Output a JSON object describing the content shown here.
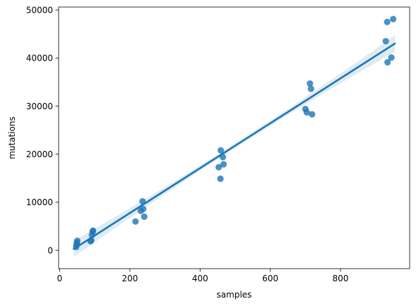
{
  "chart_data": {
    "type": "scatter",
    "title": "",
    "xlabel": "samples",
    "ylabel": "mutations",
    "xlim": [
      -3,
      997
    ],
    "ylim": [
      -3800,
      50600
    ],
    "x_ticks": [
      0,
      200,
      400,
      600,
      800
    ],
    "x_tick_labels": [
      "0",
      "200",
      "400",
      "600",
      "800"
    ],
    "y_ticks": [
      0,
      10000,
      20000,
      30000,
      40000,
      50000
    ],
    "y_tick_labels": [
      "0",
      "10000",
      "20000",
      "30000",
      "40000",
      "50000"
    ],
    "grid": false,
    "legend": "none",
    "colors": {
      "points": "#1f77b4",
      "regression_line": "#1f77b4",
      "confidence_band": "#1f77b4"
    },
    "points": [
      {
        "x": 47,
        "y": 700
      },
      {
        "x": 48,
        "y": 1200
      },
      {
        "x": 49,
        "y": 1600
      },
      {
        "x": 50,
        "y": 2000
      },
      {
        "x": 88,
        "y": 1900
      },
      {
        "x": 90,
        "y": 2100
      },
      {
        "x": 92,
        "y": 3200
      },
      {
        "x": 94,
        "y": 3900
      },
      {
        "x": 95,
        "y": 4100
      },
      {
        "x": 216,
        "y": 6000
      },
      {
        "x": 231,
        "y": 8200
      },
      {
        "x": 236,
        "y": 10200
      },
      {
        "x": 238,
        "y": 8600
      },
      {
        "x": 241,
        "y": 7000
      },
      {
        "x": 453,
        "y": 17300
      },
      {
        "x": 458,
        "y": 14900
      },
      {
        "x": 459,
        "y": 20800
      },
      {
        "x": 465,
        "y": 19400
      },
      {
        "x": 467,
        "y": 17900
      },
      {
        "x": 700,
        "y": 29400
      },
      {
        "x": 704,
        "y": 28700
      },
      {
        "x": 713,
        "y": 34700
      },
      {
        "x": 716,
        "y": 33600
      },
      {
        "x": 719,
        "y": 28300
      },
      {
        "x": 929,
        "y": 43500
      },
      {
        "x": 933,
        "y": 47500
      },
      {
        "x": 934,
        "y": 39100
      },
      {
        "x": 945,
        "y": 40100
      },
      {
        "x": 950,
        "y": 48100
      }
    ],
    "regression": {
      "x_range": [
        40,
        955
      ],
      "y_range": [
        300,
        43000
      ],
      "band_halfwidth_ends": 1700,
      "band_halfwidth_center": 500
    }
  }
}
